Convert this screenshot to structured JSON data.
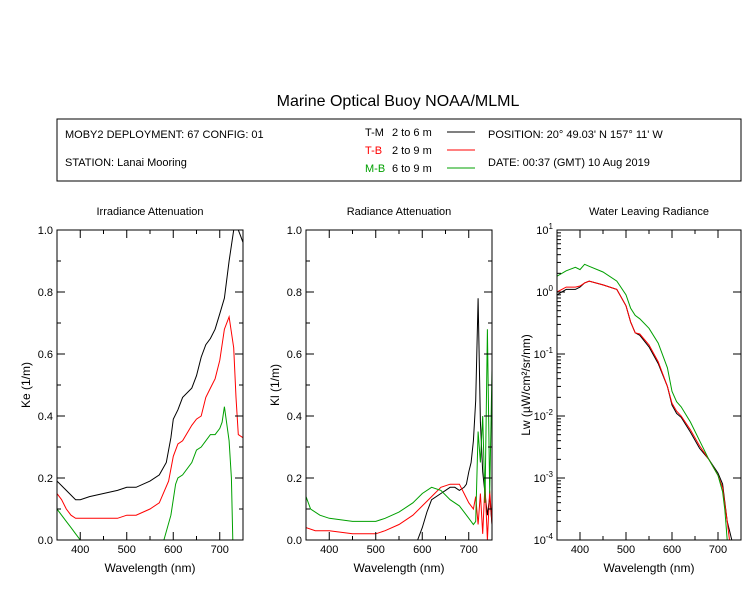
{
  "title": "Marine Optical Buoy NOAA/MLML",
  "info": {
    "deployment": "MOBY2 DEPLOYMENT: 67 CONFIG: 01",
    "station": "STATION: Lanai Mooring",
    "position": "POSITION: 20° 49.03' N   157° 11' W",
    "date": "DATE: 00:37 (GMT) 10 Aug 2019"
  },
  "colors": {
    "T-M": "#000000",
    "T-B": "#ff0000",
    "M-B": "#00a000"
  },
  "chart_data": [
    {
      "type": "line",
      "title": "Irradiance Attenuation",
      "xlabel": "Wavelength (nm)",
      "ylabel": "Ke  (1/m)",
      "xlim": [
        350,
        750
      ],
      "ylim": [
        0,
        1
      ],
      "xticks": [
        "400",
        "500",
        "600",
        "700"
      ],
      "yticks": [
        "0.0",
        "0.2",
        "0.4",
        "0.6",
        "0.8",
        "1.0"
      ],
      "legend": [
        {
          "key": "T-M",
          "text": "2 to 6  m"
        },
        {
          "key": "T-B",
          "text": "2 to 9  m"
        },
        {
          "key": "M-B",
          "text": "6 to 9  m"
        }
      ],
      "series": [
        {
          "key": "T-M",
          "x": [
            350,
            370,
            390,
            400,
            420,
            450,
            480,
            500,
            520,
            550,
            570,
            585,
            595,
            600,
            610,
            620,
            640,
            650,
            660,
            670,
            680,
            690,
            700,
            710,
            720,
            730,
            740,
            745,
            750
          ],
          "y": [
            0.19,
            0.16,
            0.13,
            0.13,
            0.14,
            0.15,
            0.16,
            0.17,
            0.17,
            0.19,
            0.21,
            0.25,
            0.33,
            0.39,
            0.42,
            0.46,
            0.49,
            0.53,
            0.59,
            0.63,
            0.65,
            0.68,
            0.73,
            0.78,
            0.9,
            1.0,
            1.0,
            0.98,
            0.96
          ]
        },
        {
          "key": "T-B",
          "x": [
            350,
            360,
            370,
            380,
            390,
            400,
            420,
            450,
            480,
            500,
            520,
            550,
            570,
            590,
            600,
            610,
            620,
            640,
            650,
            660,
            670,
            680,
            690,
            700,
            710,
            720,
            730,
            735,
            740,
            750
          ],
          "y": [
            0.15,
            0.13,
            0.1,
            0.08,
            0.07,
            0.07,
            0.07,
            0.07,
            0.07,
            0.08,
            0.08,
            0.1,
            0.12,
            0.19,
            0.27,
            0.31,
            0.32,
            0.37,
            0.39,
            0.4,
            0.46,
            0.49,
            0.52,
            0.58,
            0.68,
            0.72,
            0.62,
            0.46,
            0.34,
            0.33
          ]
        },
        {
          "key": "M-B",
          "x": [
            350,
            360,
            370,
            380,
            390,
            400,
            410,
            420,
            440,
            480,
            520,
            560,
            580,
            595,
            605,
            610,
            620,
            640,
            650,
            660,
            670,
            680,
            690,
            700,
            705,
            710,
            720,
            725,
            728
          ],
          "y": [
            0.1,
            0.08,
            0.06,
            0.04,
            0.02,
            0.0,
            0.0,
            0.0,
            0.0,
            0.0,
            0.0,
            0.0,
            0.0,
            0.08,
            0.18,
            0.2,
            0.21,
            0.25,
            0.29,
            0.3,
            0.32,
            0.34,
            0.34,
            0.36,
            0.38,
            0.43,
            0.32,
            0.2,
            0.0
          ]
        }
      ]
    },
    {
      "type": "line",
      "title": "Radiance Attenuation",
      "xlabel": "Wavelength (nm)",
      "ylabel": "Kl  (1/m)",
      "xlim": [
        350,
        750
      ],
      "ylim": [
        0,
        1
      ],
      "xticks": [
        "400",
        "500",
        "600",
        "700"
      ],
      "yticks": [
        "0.0",
        "0.2",
        "0.4",
        "0.6",
        "0.8",
        "1.0"
      ],
      "series": [
        {
          "key": "T-M",
          "x": [
            590,
            600,
            610,
            620,
            640,
            650,
            660,
            670,
            680,
            690,
            695,
            700,
            705,
            710,
            715,
            720,
            725,
            730,
            735,
            740,
            745,
            750
          ],
          "y": [
            0.0,
            0.04,
            0.09,
            0.13,
            0.15,
            0.16,
            0.17,
            0.17,
            0.16,
            0.17,
            0.18,
            0.22,
            0.25,
            0.32,
            0.45,
            0.78,
            0.38,
            0.22,
            0.15,
            0.08,
            0.14,
            0.05
          ]
        },
        {
          "key": "T-B",
          "x": [
            350,
            370,
            400,
            450,
            480,
            500,
            520,
            550,
            580,
            600,
            620,
            640,
            660,
            680,
            690,
            700,
            710,
            715,
            720,
            725,
            730,
            735,
            740,
            745,
            750
          ],
          "y": [
            0.04,
            0.03,
            0.03,
            0.02,
            0.02,
            0.02,
            0.03,
            0.05,
            0.08,
            0.11,
            0.14,
            0.17,
            0.18,
            0.18,
            0.15,
            0.12,
            0.1,
            0.14,
            0.05,
            0.15,
            0.02,
            0.18,
            0.0,
            0.16,
            0.05
          ]
        },
        {
          "key": "M-B",
          "x": [
            350,
            360,
            380,
            400,
            450,
            500,
            520,
            550,
            580,
            600,
            620,
            640,
            660,
            680,
            690,
            700,
            710,
            715,
            720,
            725,
            730,
            735,
            740,
            745,
            750
          ],
          "y": [
            0.14,
            0.1,
            0.08,
            0.07,
            0.06,
            0.06,
            0.07,
            0.09,
            0.12,
            0.15,
            0.17,
            0.16,
            0.13,
            0.11,
            0.09,
            0.07,
            0.05,
            0.06,
            0.35,
            0.25,
            0.4,
            0.12,
            0.68,
            0.15,
            0.55
          ]
        }
      ]
    },
    {
      "type": "line",
      "title": "Water Leaving Radiance",
      "xlabel": "Wavelength (nm)",
      "ylabel": "Lw  (µW/cm²/sr/nm)",
      "log_y": true,
      "xlim": [
        350,
        750
      ],
      "ylim": [
        0.0001,
        10
      ],
      "xticks": [
        "400",
        "500",
        "600",
        "700"
      ],
      "yticks": [
        "10^-4",
        "10^-3",
        "10^-2",
        "10^-1",
        "10^0",
        "10^1"
      ],
      "series": [
        {
          "key": "T-M",
          "x": [
            350,
            370,
            390,
            400,
            410,
            420,
            450,
            480,
            500,
            510,
            520,
            530,
            550,
            570,
            590,
            600,
            610,
            620,
            640,
            660,
            680,
            700,
            710,
            720,
            730,
            735
          ],
          "y": [
            0.9,
            1.1,
            1.1,
            1.2,
            1.4,
            1.5,
            1.3,
            1.1,
            0.6,
            0.33,
            0.22,
            0.2,
            0.13,
            0.07,
            0.03,
            0.015,
            0.011,
            0.0095,
            0.0055,
            0.003,
            0.002,
            0.0012,
            0.0008,
            0.0002,
            0.0001,
            0.0001
          ]
        },
        {
          "key": "T-B",
          "x": [
            350,
            370,
            390,
            400,
            410,
            420,
            450,
            480,
            500,
            510,
            520,
            530,
            550,
            570,
            590,
            600,
            610,
            620,
            640,
            660,
            680,
            700,
            710,
            720,
            725
          ],
          "y": [
            1.0,
            1.2,
            1.2,
            1.25,
            1.4,
            1.5,
            1.3,
            1.1,
            0.6,
            0.33,
            0.22,
            0.21,
            0.14,
            0.075,
            0.03,
            0.016,
            0.012,
            0.01,
            0.006,
            0.0033,
            0.002,
            0.0011,
            0.0007,
            0.0002,
            0.0001
          ]
        },
        {
          "key": "M-B",
          "x": [
            350,
            370,
            390,
            400,
            410,
            420,
            450,
            480,
            500,
            510,
            520,
            530,
            550,
            570,
            590,
            600,
            610,
            620,
            640,
            660,
            680,
            700,
            710,
            715,
            720
          ],
          "y": [
            1.8,
            2.2,
            2.5,
            2.3,
            2.8,
            2.6,
            2.1,
            1.5,
            0.9,
            0.55,
            0.42,
            0.37,
            0.26,
            0.15,
            0.06,
            0.025,
            0.017,
            0.014,
            0.008,
            0.004,
            0.002,
            0.0011,
            0.0006,
            0.0003,
            0.0001
          ]
        }
      ]
    }
  ]
}
